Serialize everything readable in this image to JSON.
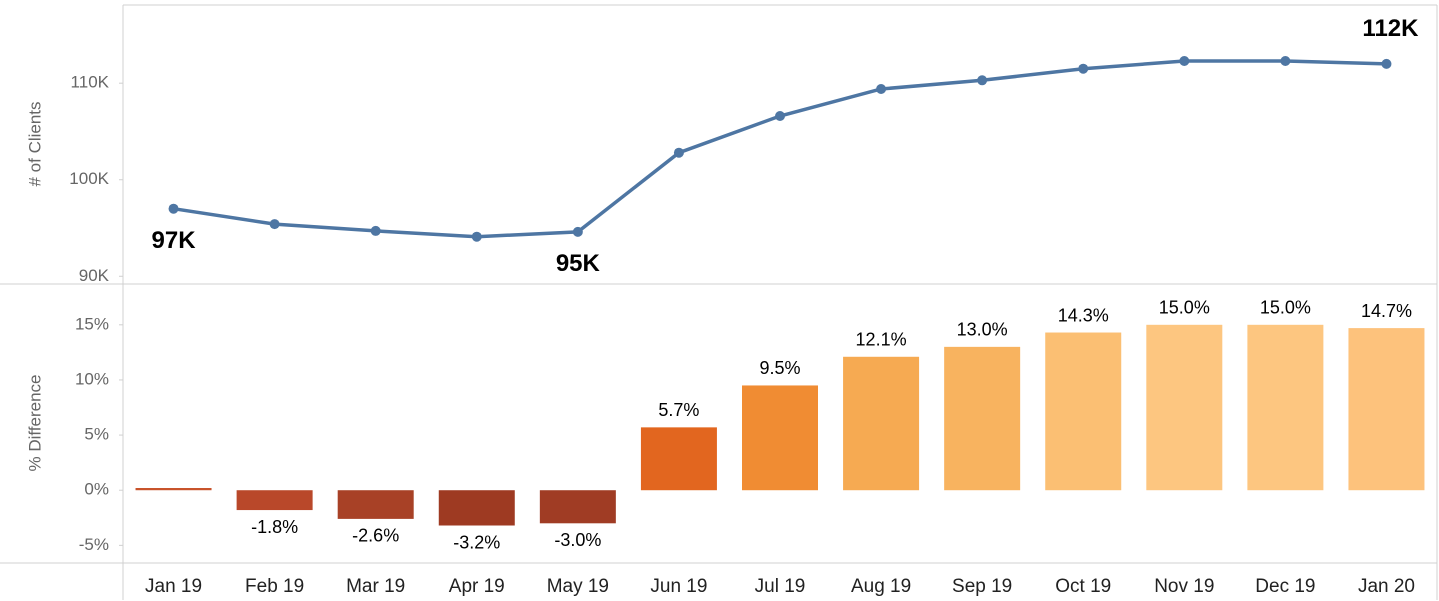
{
  "chart_data": [
    {
      "type": "line",
      "y_label": "# of Clients",
      "color": "#4e76a3",
      "categories": [
        "Jan 19",
        "Feb 19",
        "Mar 19",
        "Apr 19",
        "May 19",
        "Jun 19",
        "Jul 19",
        "Aug 19",
        "Sep 19",
        "Oct 19",
        "Nov 19",
        "Dec 19",
        "Jan 20"
      ],
      "values": [
        97000,
        95400,
        94700,
        94100,
        94600,
        102800,
        106600,
        109400,
        110300,
        111500,
        112300,
        112300,
        112000
      ],
      "value_labels": [
        "97K",
        null,
        null,
        null,
        "95K",
        null,
        null,
        null,
        null,
        null,
        null,
        null,
        "112K"
      ],
      "ylim": [
        89200,
        118100
      ],
      "yticks": [
        {
          "value": 90000,
          "label": "90K"
        },
        {
          "value": 100000,
          "label": "100K"
        },
        {
          "value": 110000,
          "label": "110K"
        }
      ]
    },
    {
      "type": "bar",
      "y_label": "% Difference",
      "categories": [
        "Jan 19",
        "Feb 19",
        "Mar 19",
        "Apr 19",
        "May 19",
        "Jun 19",
        "Jul 19",
        "Aug 19",
        "Sep 19",
        "Oct 19",
        "Nov 19",
        "Dec 19",
        "Jan 20"
      ],
      "values": [
        0.2,
        -1.8,
        -2.6,
        -3.2,
        -3.0,
        5.7,
        9.5,
        12.1,
        13.0,
        14.3,
        15.0,
        15.0,
        14.7
      ],
      "value_labels": [
        null,
        "-1.8%",
        "-2.6%",
        "-3.2%",
        "-3.0%",
        "5.7%",
        "9.5%",
        "12.1%",
        "13.0%",
        "14.3%",
        "15.0%",
        "15.0%",
        "14.7%"
      ],
      "colors": [
        "#c8522a",
        "#b9482a",
        "#a84126",
        "#9e3a22",
        "#a03c24",
        "#e2661f",
        "#f08c33",
        "#f6aa52",
        "#f8b35f",
        "#fbbf73",
        "#fdc680",
        "#fdc680",
        "#fdc27c"
      ],
      "ylim": [
        -6.6,
        18.7
      ],
      "yticks": [
        {
          "value": -5,
          "label": "-5%"
        },
        {
          "value": 0,
          "label": "0%"
        },
        {
          "value": 5,
          "label": "5%"
        },
        {
          "value": 10,
          "label": "10%"
        },
        {
          "value": 15,
          "label": "15%"
        }
      ]
    }
  ]
}
